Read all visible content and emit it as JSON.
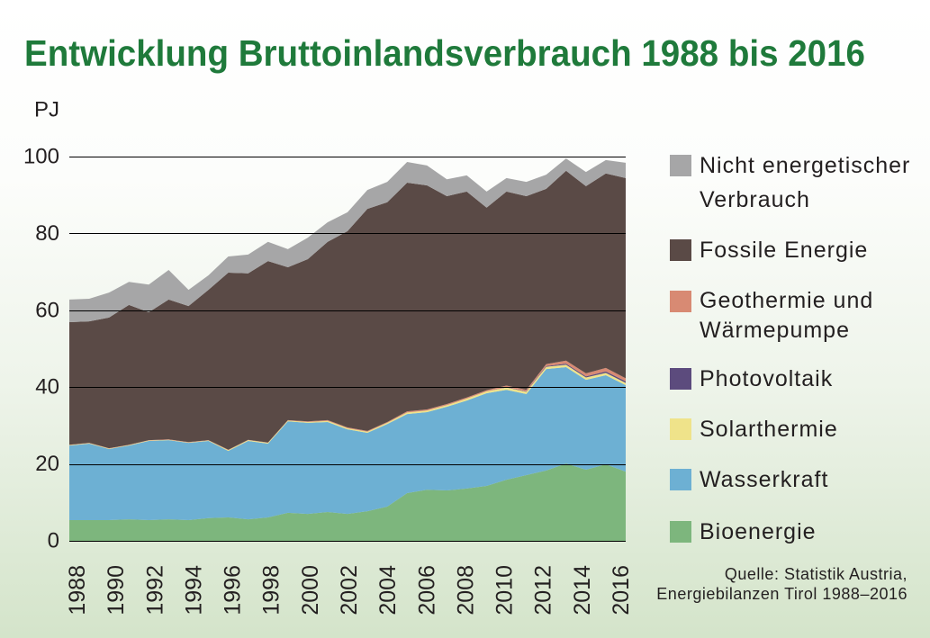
{
  "chart_data": {
    "type": "area",
    "stacked": true,
    "title": "Entwicklung Bruttoinlandsverbrauch 1988 bis 2016",
    "ylabel": "PJ",
    "ylim": [
      0,
      100
    ],
    "yticks": [
      0,
      20,
      40,
      60,
      80,
      100
    ],
    "xticks": [
      1988,
      1990,
      1992,
      1994,
      1996,
      1998,
      2000,
      2002,
      2004,
      2006,
      2008,
      2010,
      2012,
      2014,
      2016
    ],
    "grid": true,
    "legend": "right",
    "x": [
      1988,
      1989,
      1990,
      1991,
      1992,
      1993,
      1994,
      1995,
      1996,
      1997,
      1998,
      1999,
      2000,
      2001,
      2002,
      2003,
      2004,
      2005,
      2006,
      2007,
      2008,
      2009,
      2010,
      2011,
      2012,
      2013,
      2014,
      2015,
      2016
    ],
    "series": [
      {
        "name": "Bioenergie",
        "color": "#7db67d",
        "values": [
          5.4,
          5.4,
          5.4,
          5.6,
          5.4,
          5.6,
          5.4,
          5.9,
          6.1,
          5.6,
          6.1,
          7.3,
          7.0,
          7.5,
          7.0,
          7.7,
          8.9,
          12.4,
          13.3,
          13.1,
          13.6,
          14.3,
          15.9,
          17.1,
          18.3,
          20.1,
          18.5,
          19.9,
          18.0
        ]
      },
      {
        "name": "Wasserkraft",
        "color": "#6db0d3",
        "values": [
          19.4,
          19.9,
          18.5,
          19.2,
          20.6,
          20.6,
          20.1,
          20.1,
          17.3,
          20.4,
          19.2,
          23.8,
          23.7,
          23.4,
          22.0,
          20.4,
          21.5,
          20.6,
          20.2,
          21.8,
          22.9,
          24.1,
          23.4,
          21.1,
          26.4,
          25.1,
          23.4,
          23.2,
          22.5
        ]
      },
      {
        "name": "Solarthermie",
        "color": "#efe38a",
        "values": [
          0.1,
          0.1,
          0.1,
          0.1,
          0.1,
          0.1,
          0.1,
          0.1,
          0.2,
          0.2,
          0.2,
          0.2,
          0.2,
          0.3,
          0.3,
          0.3,
          0.3,
          0.4,
          0.4,
          0.4,
          0.5,
          0.5,
          0.6,
          0.6,
          0.6,
          0.6,
          0.6,
          0.6,
          0.6
        ]
      },
      {
        "name": "Photovoltaik",
        "color": "#5c4b7d",
        "values": [
          0,
          0,
          0,
          0,
          0,
          0,
          0,
          0,
          0,
          0,
          0,
          0,
          0,
          0,
          0,
          0,
          0,
          0,
          0,
          0,
          0,
          0,
          0.1,
          0.1,
          0.2,
          0.3,
          0.3,
          0.4,
          0.4
        ]
      },
      {
        "name": "Geothermie und Wärmepumpe",
        "color": "#d88a73",
        "values": [
          0.1,
          0.1,
          0.1,
          0.1,
          0.1,
          0.1,
          0.1,
          0.1,
          0.1,
          0.1,
          0.1,
          0.1,
          0.2,
          0.2,
          0.2,
          0.2,
          0.2,
          0.3,
          0.3,
          0.3,
          0.3,
          0.3,
          0.4,
          0.4,
          0.5,
          0.8,
          0.8,
          0.9,
          0.8
        ]
      },
      {
        "name": "Fossile Energie",
        "color": "#5a4a46",
        "values": [
          31.9,
          31.6,
          34.0,
          36.4,
          33.3,
          36.4,
          35.4,
          39.1,
          46.1,
          43.3,
          47.2,
          39.8,
          42.2,
          46.4,
          51.1,
          57.8,
          57.2,
          59.5,
          58.3,
          54.1,
          53.6,
          47.5,
          50.5,
          50.4,
          45.6,
          49.4,
          48.7,
          50.6,
          52.1
        ]
      },
      {
        "name": "Nicht energetischer Verbrauch",
        "color": "#a6a6a7",
        "values": [
          5.9,
          5.9,
          6.5,
          6.0,
          7.2,
          7.7,
          4.2,
          3.8,
          4.2,
          4.9,
          5.0,
          4.7,
          5.6,
          5.1,
          4.9,
          4.9,
          5.3,
          5.4,
          5.2,
          4.4,
          4.2,
          4.2,
          3.5,
          3.7,
          3.7,
          3.2,
          3.7,
          3.5,
          4.0
        ]
      }
    ],
    "source": [
      "Quelle: Statistik Austria,",
      "Energiebilanzen Tirol 1988–2016"
    ]
  },
  "colors": {
    "title": "#1f7a3b",
    "text": "#231f20",
    "grid": "#000000"
  }
}
